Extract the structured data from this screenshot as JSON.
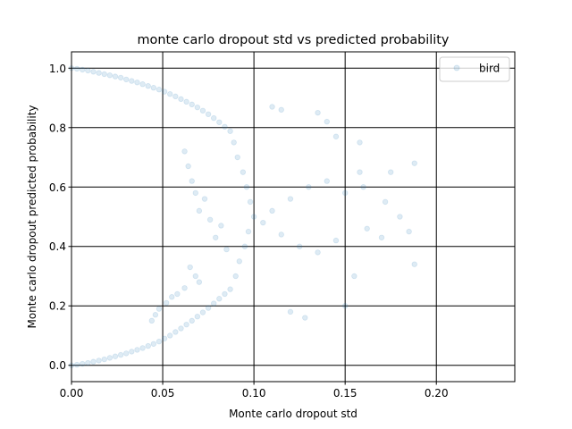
{
  "chart_data": {
    "type": "scatter",
    "title": "monte carlo dropout std vs predicted probability",
    "xlabel": "Monte carlo dropout std",
    "ylabel": "Monte carlo dropout predicted probability",
    "xlim": [
      0.0,
      0.243
    ],
    "ylim": [
      -0.055,
      1.055
    ],
    "xticks": [
      0.0,
      0.05,
      0.1,
      0.15,
      0.2
    ],
    "xtick_labels": [
      "0.00",
      "0.05",
      "0.10",
      "0.15",
      "0.20"
    ],
    "yticks": [
      0.0,
      0.2,
      0.4,
      0.6,
      0.8,
      1.0
    ],
    "ytick_labels": [
      "0.0",
      "0.2",
      "0.4",
      "0.6",
      "0.8",
      "1.0"
    ],
    "grid": true,
    "legend_position": "top-right",
    "series": [
      {
        "name": "bird",
        "color": "#1f77b4",
        "alpha": 0.15,
        "marker": "circle",
        "note_on_points": "dense point cloud; representative sample estimated from the plot",
        "points": [
          [
            0.0,
            1.0
          ],
          [
            0.003,
            0.998
          ],
          [
            0.006,
            0.995
          ],
          [
            0.009,
            0.992
          ],
          [
            0.012,
            0.988
          ],
          [
            0.015,
            0.984
          ],
          [
            0.018,
            0.98
          ],
          [
            0.021,
            0.976
          ],
          [
            0.024,
            0.972
          ],
          [
            0.027,
            0.968
          ],
          [
            0.03,
            0.962
          ],
          [
            0.033,
            0.957
          ],
          [
            0.036,
            0.952
          ],
          [
            0.039,
            0.946
          ],
          [
            0.042,
            0.94
          ],
          [
            0.045,
            0.934
          ],
          [
            0.048,
            0.928
          ],
          [
            0.051,
            0.921
          ],
          [
            0.054,
            0.913
          ],
          [
            0.057,
            0.905
          ],
          [
            0.06,
            0.896
          ],
          [
            0.063,
            0.887
          ],
          [
            0.066,
            0.878
          ],
          [
            0.069,
            0.868
          ],
          [
            0.072,
            0.857
          ],
          [
            0.075,
            0.845
          ],
          [
            0.078,
            0.832
          ],
          [
            0.081,
            0.818
          ],
          [
            0.084,
            0.803
          ],
          [
            0.087,
            0.788
          ],
          [
            0.0,
            0.0
          ],
          [
            0.003,
            0.002
          ],
          [
            0.006,
            0.005
          ],
          [
            0.009,
            0.008
          ],
          [
            0.012,
            0.012
          ],
          [
            0.015,
            0.016
          ],
          [
            0.018,
            0.02
          ],
          [
            0.021,
            0.025
          ],
          [
            0.024,
            0.03
          ],
          [
            0.027,
            0.035
          ],
          [
            0.03,
            0.04
          ],
          [
            0.033,
            0.046
          ],
          [
            0.036,
            0.052
          ],
          [
            0.039,
            0.058
          ],
          [
            0.042,
            0.065
          ],
          [
            0.045,
            0.072
          ],
          [
            0.048,
            0.08
          ],
          [
            0.051,
            0.09
          ],
          [
            0.054,
            0.1
          ],
          [
            0.057,
            0.112
          ],
          [
            0.06,
            0.124
          ],
          [
            0.063,
            0.137
          ],
          [
            0.066,
            0.15
          ],
          [
            0.069,
            0.164
          ],
          [
            0.072,
            0.178
          ],
          [
            0.075,
            0.193
          ],
          [
            0.078,
            0.208
          ],
          [
            0.081,
            0.224
          ],
          [
            0.084,
            0.24
          ],
          [
            0.087,
            0.256
          ],
          [
            0.09,
            0.3
          ],
          [
            0.092,
            0.35
          ],
          [
            0.095,
            0.4
          ],
          [
            0.097,
            0.45
          ],
          [
            0.1,
            0.5
          ],
          [
            0.098,
            0.55
          ],
          [
            0.096,
            0.6
          ],
          [
            0.094,
            0.65
          ],
          [
            0.091,
            0.7
          ],
          [
            0.089,
            0.75
          ],
          [
            0.105,
            0.48
          ],
          [
            0.11,
            0.52
          ],
          [
            0.115,
            0.44
          ],
          [
            0.12,
            0.56
          ],
          [
            0.125,
            0.4
          ],
          [
            0.13,
            0.6
          ],
          [
            0.135,
            0.38
          ],
          [
            0.14,
            0.62
          ],
          [
            0.145,
            0.42
          ],
          [
            0.15,
            0.58
          ],
          [
            0.155,
            0.3
          ],
          [
            0.158,
            0.65
          ],
          [
            0.162,
            0.46
          ],
          [
            0.17,
            0.43
          ],
          [
            0.175,
            0.65
          ],
          [
            0.18,
            0.5
          ],
          [
            0.185,
            0.45
          ],
          [
            0.188,
            0.68
          ],
          [
            0.188,
            0.34
          ],
          [
            0.172,
            0.55
          ],
          [
            0.16,
            0.6
          ],
          [
            0.158,
            0.75
          ],
          [
            0.15,
            0.2
          ],
          [
            0.145,
            0.77
          ],
          [
            0.14,
            0.82
          ],
          [
            0.135,
            0.85
          ],
          [
            0.128,
            0.16
          ],
          [
            0.12,
            0.18
          ],
          [
            0.115,
            0.86
          ],
          [
            0.11,
            0.87
          ],
          [
            0.066,
            0.62
          ],
          [
            0.064,
            0.67
          ],
          [
            0.062,
            0.72
          ],
          [
            0.068,
            0.58
          ],
          [
            0.07,
            0.52
          ],
          [
            0.073,
            0.56
          ],
          [
            0.076,
            0.49
          ],
          [
            0.079,
            0.43
          ],
          [
            0.082,
            0.47
          ],
          [
            0.085,
            0.39
          ],
          [
            0.07,
            0.28
          ],
          [
            0.068,
            0.3
          ],
          [
            0.065,
            0.33
          ],
          [
            0.062,
            0.26
          ],
          [
            0.058,
            0.24
          ],
          [
            0.055,
            0.23
          ],
          [
            0.052,
            0.21
          ],
          [
            0.048,
            0.19
          ],
          [
            0.046,
            0.17
          ],
          [
            0.044,
            0.15
          ]
        ]
      }
    ]
  }
}
